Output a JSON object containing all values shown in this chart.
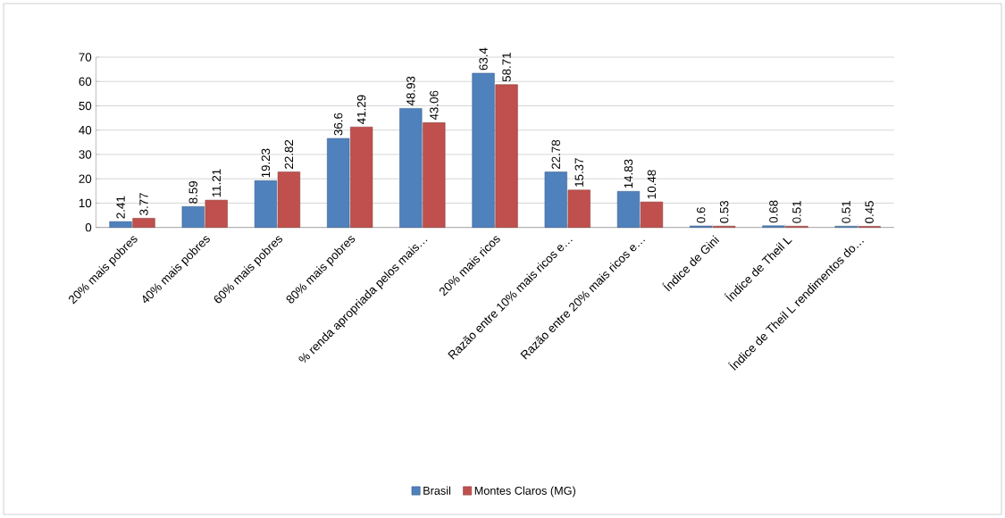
{
  "chart_data": {
    "type": "bar",
    "categories": [
      "20% mais pobres",
      "40% mais pobres",
      "60% mais pobres",
      "80% mais pobres",
      "% renda apropriada pelos mais…",
      "20% mais ricos",
      "Razão entre 10% mais ricos e…",
      "Razão entre 20% mais ricos e…",
      "Índice de Gini",
      "Índice de Theil L",
      "Índice de Theil L rendimentos do…"
    ],
    "series": [
      {
        "name": "Brasil",
        "color": "#4f81bd",
        "values": [
          2.41,
          8.59,
          19.23,
          36.6,
          48.93,
          63.4,
          22.78,
          14.83,
          0.6,
          0.68,
          0.51
        ]
      },
      {
        "name": "Montes Claros (MG)",
        "color": "#c0504d",
        "values": [
          3.77,
          11.21,
          22.82,
          41.29,
          43.06,
          58.71,
          15.37,
          10.48,
          0.53,
          0.51,
          0.45
        ]
      }
    ],
    "ylim": [
      0,
      70
    ],
    "yticks": [
      0,
      10,
      20,
      30,
      40,
      50,
      60,
      70
    ],
    "grid": "y",
    "legend": "bottom",
    "data_labels": true
  }
}
